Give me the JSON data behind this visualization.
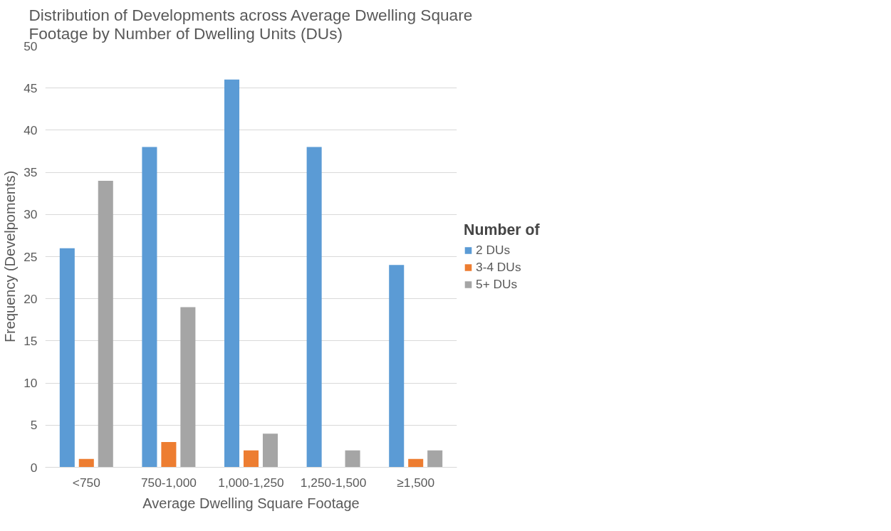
{
  "chart_data": {
    "type": "bar",
    "title": "Distribution of Developments across Average Dwelling Square Footage by Number of Dwelling Units (DUs)",
    "xlabel": "Average Dwelling Square Footage",
    "ylabel": "Frequency (Develpoments)",
    "legend_title": "Number of",
    "categories": [
      "<750",
      "750-1,000",
      "1,000-1,250",
      "1,250-1,500",
      "≥1,500"
    ],
    "series": [
      {
        "name": "2 DUs",
        "color": "#5b9bd5",
        "values": [
          26,
          38,
          46,
          38,
          24
        ]
      },
      {
        "name": "3-4 DUs",
        "color": "#ed7d31",
        "values": [
          1,
          3,
          2,
          0,
          1
        ]
      },
      {
        "name": "5+ DUs",
        "color": "#a5a5a5",
        "values": [
          34,
          19,
          4,
          2,
          2
        ]
      }
    ],
    "ylim": [
      0,
      50
    ],
    "yticks": [
      0,
      5,
      10,
      15,
      20,
      25,
      30,
      35,
      40,
      45,
      50
    ],
    "grid": "y",
    "legend": "right"
  }
}
